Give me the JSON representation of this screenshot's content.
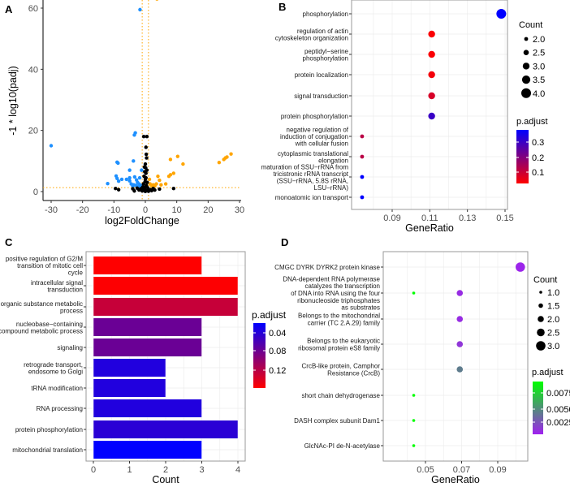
{
  "chart_data": [
    {
      "id": "A",
      "panel_label": "A",
      "type": "scatter",
      "xlabel": "log2FoldChange",
      "ylabel": "-1 * log10(padj)",
      "xlim": [
        -33,
        30
      ],
      "ylim": [
        -3,
        62.6
      ],
      "xticks": [
        -30,
        -20,
        -10,
        0,
        10,
        20,
        30
      ],
      "yticks": [
        0,
        20,
        40,
        60
      ],
      "thresholds": {
        "x": [
          -1,
          1
        ],
        "y": 1.3
      },
      "colors": {
        "down": "#1e90ff",
        "up": "#ffa500",
        "ns": "#000000",
        "threshold": "#ffa500"
      },
      "series": [
        {
          "name": "down",
          "points": [
            [
              -30,
              15
            ],
            [
              -1.7,
              59.5
            ],
            [
              -3.5,
              18.5
            ],
            [
              -3.2,
              19.2
            ],
            [
              -12,
              2.6
            ],
            [
              -9,
              9.6
            ],
            [
              -8.7,
              9.3
            ],
            [
              -3.8,
              10
            ],
            [
              -9.3,
              5.1
            ],
            [
              -9,
              4.3
            ],
            [
              -8.5,
              3.4
            ],
            [
              -7.5,
              4
            ],
            [
              -6,
              4
            ],
            [
              -5,
              7
            ],
            [
              -5,
              4.5
            ],
            [
              -5,
              3.5
            ],
            [
              -4.5,
              2.5
            ],
            [
              -3.7,
              2.2
            ],
            [
              -3.4,
              4.8
            ],
            [
              -3,
              2
            ],
            [
              -2.5,
              3
            ],
            [
              -2,
              2.5
            ],
            [
              -1.8,
              4.5
            ],
            [
              -1.5,
              2
            ],
            [
              -1.2,
              7
            ],
            [
              -2.2,
              1.6
            ],
            [
              -4,
              1.8
            ],
            [
              -2.8,
              3.8
            ]
          ]
        },
        {
          "name": "up",
          "points": [
            [
              3.7,
              63
            ],
            [
              10.3,
              11.5
            ],
            [
              8,
              10.5
            ],
            [
              12,
              9
            ],
            [
              23.5,
              9.5
            ],
            [
              25,
              10.5
            ],
            [
              25.5,
              11
            ],
            [
              26,
              11.3
            ],
            [
              27.3,
              12.3
            ],
            [
              9,
              6
            ],
            [
              7.5,
              5
            ],
            [
              8,
              5.5
            ],
            [
              6.5,
              2.5
            ],
            [
              4,
              5
            ],
            [
              4.5,
              3.7
            ],
            [
              3.5,
              2.5
            ],
            [
              2,
              2
            ],
            [
              2.5,
              2.2
            ],
            [
              3,
              1.8
            ],
            [
              5,
              2.2
            ],
            [
              1.5,
              2.5
            ],
            [
              1.3,
              4
            ]
          ]
        },
        {
          "name": "ns",
          "points": [
            [
              -0.5,
              18
            ],
            [
              0.5,
              18
            ],
            [
              0.2,
              14.5
            ],
            [
              0.3,
              12.2
            ],
            [
              0.4,
              11
            ],
            [
              0,
              9
            ],
            [
              -0.3,
              8
            ],
            [
              0.5,
              7
            ],
            [
              0.2,
              6
            ],
            [
              -0.4,
              5
            ],
            [
              0,
              4
            ],
            [
              0.6,
              3
            ],
            [
              -0.6,
              2.5
            ],
            [
              0.3,
              2
            ],
            [
              -0.8,
              1.5
            ],
            [
              0.8,
              1.2
            ],
            [
              -9.5,
              1
            ],
            [
              -8.5,
              0.6
            ],
            [
              9,
              1
            ],
            [
              4.5,
              0.8
            ],
            [
              -3.5,
              0.2
            ],
            [
              -2,
              0.5
            ],
            [
              2,
              0.3
            ],
            [
              1,
              0.1
            ],
            [
              -1,
              0.2
            ],
            [
              3,
              0.5
            ],
            [
              -4,
              0.9
            ],
            [
              0,
              0.05
            ],
            [
              -0.2,
              0.8
            ],
            [
              0.1,
              1.5
            ],
            [
              -0.1,
              3.2
            ],
            [
              0.2,
              4.5
            ],
            [
              -0.2,
              6.5
            ],
            [
              0.1,
              7.8
            ],
            [
              -1.5,
              0.9
            ],
            [
              1.6,
              0.6
            ],
            [
              2.5,
              1
            ],
            [
              -2.6,
              1.1
            ],
            [
              0.7,
              0.4
            ],
            [
              -0.7,
              0.6
            ]
          ]
        }
      ]
    },
    {
      "id": "B",
      "panel_label": "B",
      "type": "scatter",
      "xlabel": "GeneRatio",
      "xlim": [
        0.07,
        0.152
      ],
      "xticks": [
        0.09,
        0.11,
        0.13,
        0.15
      ],
      "categories": [
        [
          "phosphorylation"
        ],
        [
          "regulation of actin",
          "cytoskeleton organization"
        ],
        [
          "peptidyl−serine",
          "phosphorylation"
        ],
        [
          "protein localization"
        ],
        [
          "signal transduction"
        ],
        [
          "protein phosphorylation"
        ],
        [
          "negative regulation of",
          "induction of conjugation",
          "with cellular fusion"
        ],
        [
          "cytoplasmic translational",
          "elongation"
        ],
        [
          "maturation of SSU−rRNA from",
          "tricistronic rRNA transcript",
          "(SSU−rRNA, 5.8S rRNA,",
          "LSU−rRNA)"
        ],
        [
          "monoatomic ion transport"
        ]
      ],
      "gene_ratio": [
        0.148,
        0.111,
        0.111,
        0.111,
        0.111,
        0.111,
        0.074,
        0.074,
        0.074,
        0.074
      ],
      "count": [
        4,
        3,
        3,
        3,
        3,
        3,
        2,
        2,
        2,
        2
      ],
      "p_adjust": [
        0.38,
        0.03,
        0.03,
        0.04,
        0.08,
        0.3,
        0.12,
        0.12,
        0.38,
        0.38
      ],
      "size_legend": {
        "title": "Count",
        "values": [
          "2.0",
          "2.5",
          "3.0",
          "3.5",
          "4.0"
        ]
      },
      "color_legend": {
        "title": "p.adjust",
        "ticks": [
          "0.3",
          "0.2",
          "0.1"
        ],
        "range": [
          0.024,
          0.38
        ],
        "low_color": "#ff0000",
        "high_color": "#0000ff"
      }
    },
    {
      "id": "C",
      "panel_label": "C",
      "type": "bar",
      "xlabel": "Count",
      "xlim": [
        -0.2,
        4.2
      ],
      "xticks": [
        0,
        1,
        2,
        3,
        4
      ],
      "categories": [
        [
          "positive regulation of G2/M",
          "transition of mitotic cell",
          "cycle"
        ],
        [
          "intracellular signal",
          "transduction"
        ],
        [
          "organic substance metabolic",
          "process"
        ],
        [
          "nucleobase−containing",
          "compound metabolic process"
        ],
        [
          "signaling"
        ],
        [
          "retrograde transport,",
          "endosome to Golgi"
        ],
        [
          "tRNA modification"
        ],
        [
          "RNA processing"
        ],
        [
          "protein phosphorylation"
        ],
        [
          "mitochondrial translation"
        ]
      ],
      "values": [
        3,
        4,
        4,
        3,
        3,
        2,
        2,
        3,
        4,
        3
      ],
      "p_adjust": [
        0.019,
        0.02,
        0.05,
        0.1,
        0.1,
        0.14,
        0.14,
        0.14,
        0.135,
        0.158
      ],
      "color_legend": {
        "title": "p.adjust",
        "ticks": [
          "0.04",
          "0.08",
          "0.12"
        ],
        "range": [
          0.019,
          0.158
        ],
        "low_color": "#ff0000",
        "high_color": "#0000ff"
      }
    },
    {
      "id": "D",
      "panel_label": "D",
      "type": "scatter",
      "xlabel": "GeneRatio",
      "xlim": [
        0.04,
        0.105
      ],
      "xticks": [
        0.05,
        0.07,
        0.09
      ],
      "categories": [
        [
          "CMGC DYRK DYRK2 protein kinase"
        ],
        [
          "DNA-dependent RNA polymerase",
          "catalyzes the transcription",
          "of DNA into RNA using the four",
          "ribonucleoside triphosphates",
          "as substrates"
        ],
        [
          "Belongs to the mitochondrial",
          "carrier (TC 2.A.29) family"
        ],
        [
          "Belongs to the eukaryotic",
          "ribosomal protein eS8 family"
        ],
        [
          "CrcB-like protein, Camphor",
          "Resistance (CrcB)"
        ],
        [
          "short chain dehydrogenase"
        ],
        [
          "DASH complex subunit Dam1"
        ],
        [
          "GlcNAc-PI de-N-acetylase"
        ]
      ],
      "points": [
        {
          "row": 0,
          "gene_ratio": 0.1025,
          "count": 3,
          "p_adjust": 0.0005
        },
        {
          "row": 1,
          "gene_ratio": 0.0435,
          "count": 1,
          "p_adjust": 0.0093
        },
        {
          "row": 1,
          "gene_ratio": 0.069,
          "count": 2,
          "p_adjust": 0.0008
        },
        {
          "row": 2,
          "gene_ratio": 0.069,
          "count": 2,
          "p_adjust": 0.0008
        },
        {
          "row": 3,
          "gene_ratio": 0.069,
          "count": 2,
          "p_adjust": 0.0012
        },
        {
          "row": 4,
          "gene_ratio": 0.069,
          "count": 2,
          "p_adjust": 0.004
        },
        {
          "row": 5,
          "gene_ratio": 0.0435,
          "count": 1,
          "p_adjust": 0.0093
        },
        {
          "row": 6,
          "gene_ratio": 0.0435,
          "count": 1,
          "p_adjust": 0.0093
        },
        {
          "row": 7,
          "gene_ratio": 0.0435,
          "count": 1,
          "p_adjust": 0.0093
        }
      ],
      "size_legend": {
        "title": "Count",
        "values": [
          "1.0",
          "1.5",
          "2.0",
          "2.5",
          "3.0"
        ]
      },
      "color_legend": {
        "title": "p.adjust",
        "ticks": [
          "0.0075",
          "0.0050",
          "0.0025"
        ],
        "range": [
          0.0003,
          0.0093
        ],
        "low_color": "#a020f0",
        "high_color": "#00ff00"
      }
    }
  ]
}
